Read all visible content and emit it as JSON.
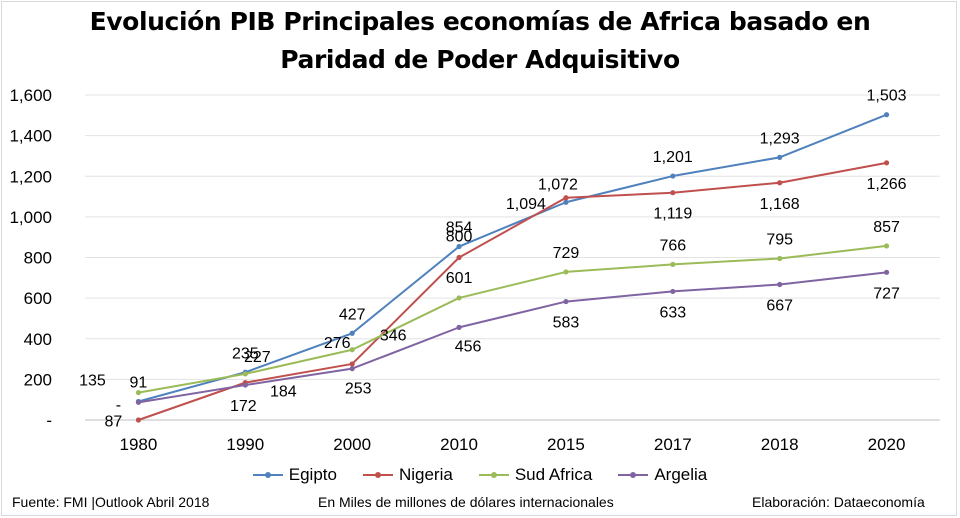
{
  "title": {
    "line1": "Evolución PIB Principales economías de Africa basado en",
    "line2": "Paridad de Poder Adquisitivo"
  },
  "footer": {
    "source": "Fuente: FMI |Outlook Abril 2018",
    "units": "En Miles de millones de dólares internacionales",
    "credit": "Elaboración: Dataeconomía"
  },
  "chart_data": {
    "type": "line",
    "title": "Evolución PIB Principales economías de Africa basado en Paridad de Poder Adquisitivo",
    "categories": [
      "1980",
      "1990",
      "2000",
      "2010",
      "2015",
      "2017",
      "2018",
      "2020"
    ],
    "ylim": [
      0,
      1600
    ],
    "yticks": [
      0,
      200,
      400,
      600,
      800,
      1000,
      1200,
      1400,
      1600
    ],
    "ytick_labels": [
      "-",
      "200",
      "400",
      "600",
      "800",
      "1,000",
      "1,200",
      "1,400",
      "1,600"
    ],
    "grid": true,
    "legend_position": "bottom",
    "series": [
      {
        "name": "Egipto",
        "color": "#4f81bd",
        "values": [
          91,
          235,
          427,
          854,
          1072,
          1201,
          1293,
          1503
        ],
        "labels": [
          "91",
          "235",
          "427",
          "854",
          "1,072",
          "1,201",
          "1,293",
          "1,503"
        ]
      },
      {
        "name": "Nigeria",
        "color": "#c0504d",
        "values": [
          0,
          184,
          276,
          800,
          1094,
          1119,
          1168,
          1266
        ],
        "labels": [
          "-",
          "184",
          "276",
          "800",
          "1,094",
          "1,119",
          "1,168",
          "1,266"
        ]
      },
      {
        "name": "Sud Africa",
        "color": "#9bbb59",
        "values": [
          135,
          227,
          346,
          601,
          729,
          766,
          795,
          857
        ],
        "labels": [
          "135",
          "227",
          "346",
          "601",
          "729",
          "766",
          "795",
          "857"
        ]
      },
      {
        "name": "Argelia",
        "color": "#8064a2",
        "values": [
          87,
          172,
          253,
          456,
          583,
          633,
          667,
          727
        ],
        "labels": [
          "87",
          "172",
          "253",
          "456",
          "583",
          "633",
          "667",
          "727"
        ]
      }
    ]
  }
}
